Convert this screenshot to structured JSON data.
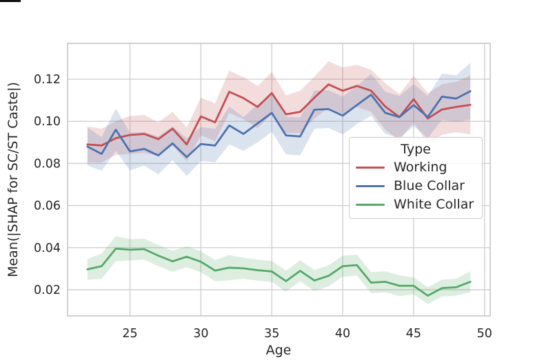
{
  "chart_data": {
    "type": "line",
    "title": "",
    "xlabel": "Age",
    "ylabel": "Mean(|SHAP for SC/ST Caste|)",
    "x": [
      22,
      23,
      24,
      25,
      26,
      27,
      28,
      29,
      30,
      31,
      32,
      33,
      34,
      35,
      36,
      37,
      38,
      39,
      40,
      41,
      42,
      43,
      44,
      45,
      46,
      47,
      48,
      49
    ],
    "xticks": [
      25,
      30,
      35,
      40,
      45,
      50
    ],
    "yticks": [
      0.02,
      0.04,
      0.06,
      0.08,
      0.1,
      0.12
    ],
    "ytick_labels": [
      "0.02",
      "0.04",
      "0.06",
      "0.08",
      "0.10",
      "0.12"
    ],
    "xlim": [
      20.6,
      50.4
    ],
    "ylim": [
      0.0076,
      0.137
    ],
    "grid": true,
    "band_alpha": 0.2,
    "legend": {
      "title": "Type",
      "position": "lower-right-inside"
    },
    "colors": {
      "grid": "#cccccc",
      "spine": "#bdbdbd",
      "text": "#262626",
      "background": "#ffffff"
    },
    "series": [
      {
        "name": "Working",
        "color": "#c44e52",
        "values": [
          0.089,
          0.0885,
          0.092,
          0.0935,
          0.094,
          0.0915,
          0.0965,
          0.089,
          0.1023,
          0.0995,
          0.114,
          0.111,
          0.1068,
          0.1134,
          0.1033,
          0.1045,
          0.1112,
          0.1175,
          0.1145,
          0.1168,
          0.1145,
          0.107,
          0.102,
          0.1105,
          0.1013,
          0.1056,
          0.1068,
          0.1078
        ],
        "band": [
          0.0085,
          0.008,
          0.008,
          0.009,
          0.009,
          0.008,
          0.008,
          0.008,
          0.009,
          0.009,
          0.01,
          0.01,
          0.01,
          0.01,
          0.009,
          0.01,
          0.01,
          0.011,
          0.011,
          0.01,
          0.01,
          0.011,
          0.011,
          0.011,
          0.012,
          0.012,
          0.012,
          0.014
        ]
      },
      {
        "name": "Blue Collar",
        "color": "#4c72b0",
        "values": [
          0.088,
          0.0845,
          0.096,
          0.0857,
          0.0869,
          0.0838,
          0.0895,
          0.083,
          0.0892,
          0.0885,
          0.098,
          0.094,
          0.099,
          0.104,
          0.0933,
          0.0928,
          0.1055,
          0.1058,
          0.1027,
          0.1077,
          0.1126,
          0.104,
          0.102,
          0.1077,
          0.102,
          0.1117,
          0.1108,
          0.1143
        ],
        "band": [
          0.009,
          0.008,
          0.01,
          0.009,
          0.008,
          0.009,
          0.008,
          0.009,
          0.008,
          0.008,
          0.009,
          0.008,
          0.009,
          0.009,
          0.009,
          0.009,
          0.009,
          0.009,
          0.009,
          0.009,
          0.01,
          0.01,
          0.01,
          0.01,
          0.01,
          0.011,
          0.011,
          0.0135
        ]
      },
      {
        "name": "White Collar",
        "color": "#55a868",
        "values": [
          0.0297,
          0.0312,
          0.0395,
          0.039,
          0.0393,
          0.0362,
          0.0335,
          0.0357,
          0.0333,
          0.0291,
          0.0305,
          0.0302,
          0.0293,
          0.0287,
          0.0241,
          0.029,
          0.0244,
          0.0266,
          0.0312,
          0.0317,
          0.0234,
          0.0238,
          0.0219,
          0.0219,
          0.0172,
          0.0208,
          0.0212,
          0.0238
        ],
        "band": [
          0.005,
          0.006,
          0.006,
          0.005,
          0.005,
          0.005,
          0.005,
          0.005,
          0.005,
          0.005,
          0.006,
          0.005,
          0.005,
          0.005,
          0.005,
          0.005,
          0.005,
          0.005,
          0.005,
          0.005,
          0.005,
          0.005,
          0.005,
          0.004,
          0.004,
          0.004,
          0.004,
          0.005
        ]
      }
    ]
  }
}
